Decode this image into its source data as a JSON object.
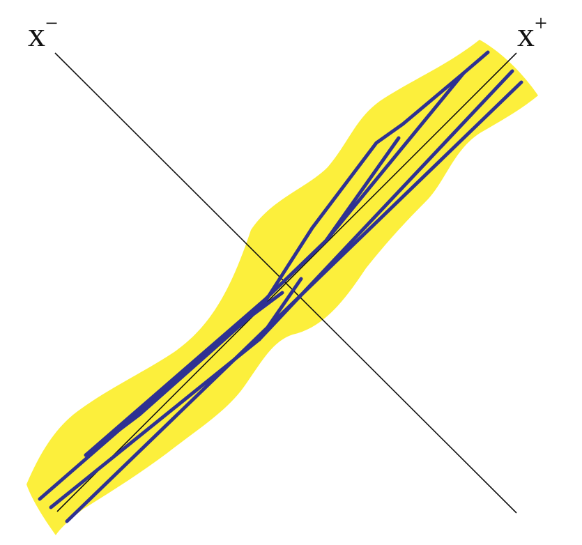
{
  "labels": {
    "x_minus_base": "x",
    "x_minus_sup": "−",
    "x_plus_base": "x",
    "x_plus_sup": "+"
  },
  "colors": {
    "background": "#ffffff",
    "band_fill": "#fcef3c",
    "path_stroke": "#2e3192",
    "axis_stroke": "#111111"
  }
}
